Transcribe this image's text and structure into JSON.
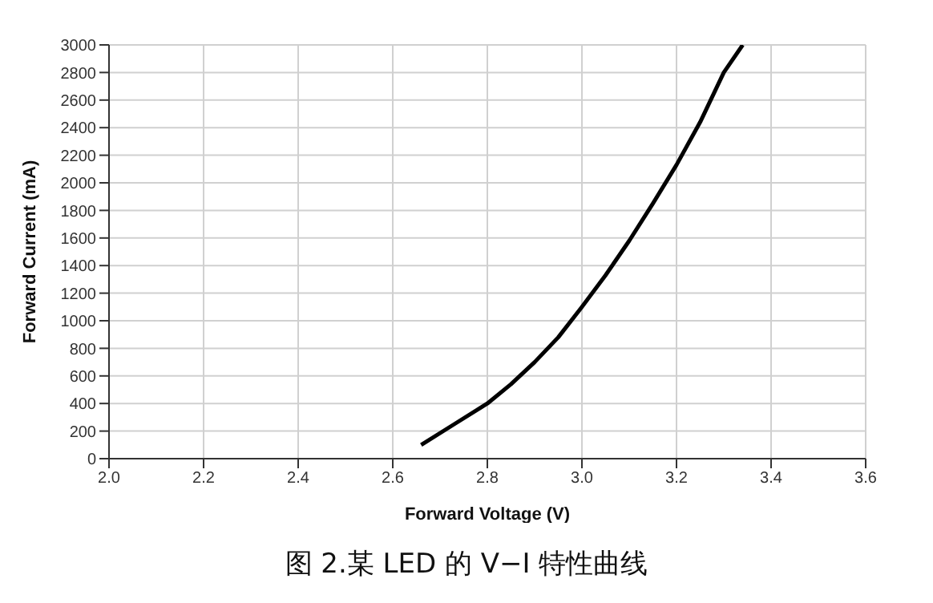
{
  "chart_data": {
    "type": "line",
    "xlabel": "Forward Voltage (V)",
    "ylabel": "Forward Current (mA)",
    "x": [
      2.66,
      2.73,
      2.8,
      2.85,
      2.9,
      2.95,
      3.0,
      3.05,
      3.1,
      3.15,
      3.2,
      3.25,
      3.3,
      3.34
    ],
    "series": [
      {
        "color": "#000000",
        "values": [
          100,
          250,
          400,
          540,
          700,
          880,
          1100,
          1330,
          1580,
          1850,
          2130,
          2440,
          2800,
          3000
        ]
      }
    ],
    "xlim": [
      2.0,
      3.6
    ],
    "xticks": [
      {
        "value": 2.0,
        "label": "2.0"
      },
      2.2,
      2.4,
      2.6,
      2.8,
      {
        "value": 3.0,
        "label": "3.0"
      },
      3.2,
      3.4,
      3.6
    ],
    "ylim": [
      0,
      3000
    ],
    "yticks": [
      0,
      200,
      400,
      600,
      800,
      1000,
      1200,
      1400,
      1600,
      1800,
      2000,
      2200,
      2400,
      2600,
      2800,
      3000
    ],
    "grid": true,
    "marker": "none",
    "line_style": "solid",
    "annotations": [
      "图 2.某 LED 的 V−I 特性曲线"
    ]
  }
}
